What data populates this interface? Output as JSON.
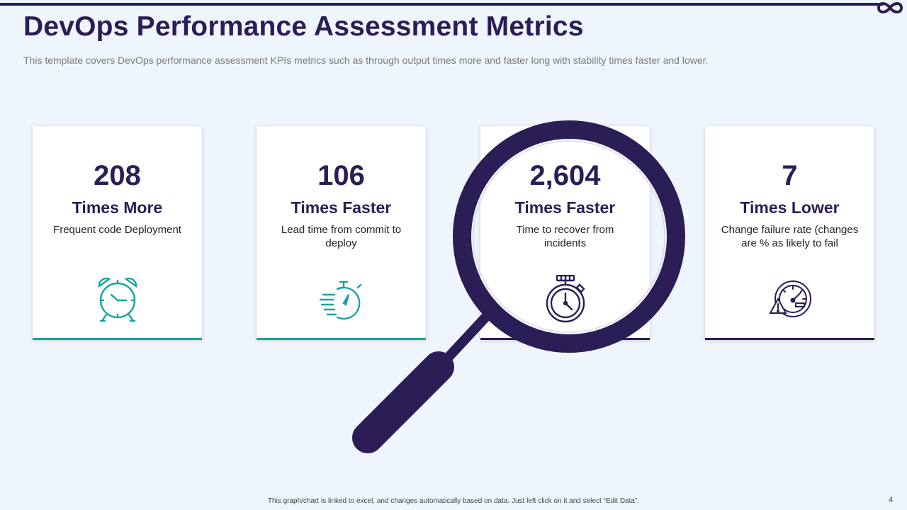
{
  "header": {
    "title": "DevOps Performance Assessment Metrics",
    "subtitle": "This template covers DevOps performance assessment KPIs metrics such as through output times more and faster long with stability times faster and lower."
  },
  "cards": [
    {
      "value": "208",
      "label": "Times More",
      "desc": "Frequent code Deployment",
      "icon": "alarm-clock-icon"
    },
    {
      "value": "106",
      "label": "Times Faster",
      "desc": "Lead time from commit to deploy",
      "icon": "fast-stopwatch-icon"
    },
    {
      "value": "2,604",
      "label": "Times Faster",
      "desc": "Time to recover from incidents",
      "icon": "stopwatch-icon"
    },
    {
      "value": "7",
      "label": "Times Lower",
      "desc": "Change failure rate (changes are % as likely to fail",
      "icon": "speedometer-warning-icon"
    }
  ],
  "footer": {
    "note": "This graph/chart is linked to excel, and changes automatically based on data. Just left click on it and select “Edit Data”.",
    "page_number": "4"
  },
  "colors": {
    "navy": "#2b1d56",
    "teal": "#1aa3a0",
    "background": "#eff5fd"
  }
}
